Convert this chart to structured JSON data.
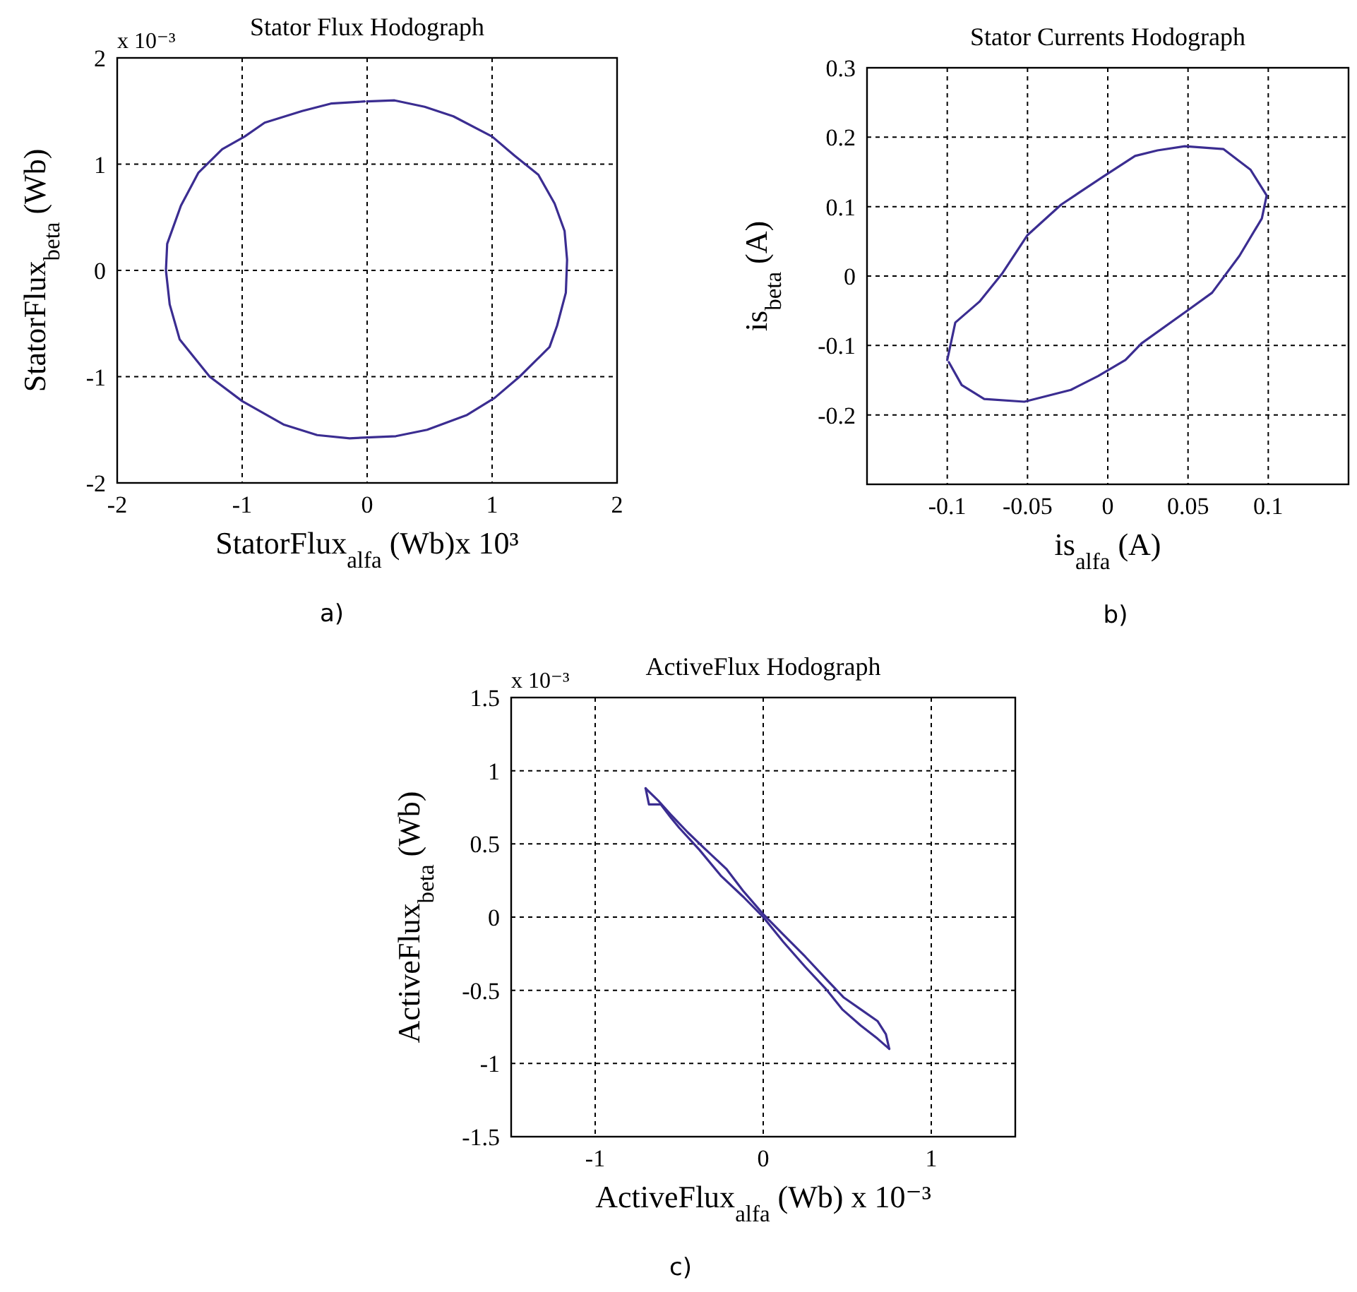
{
  "chart_data": [
    {
      "type": "line",
      "title": "Stator Flux Hodograph",
      "xlabel": "StatorFlux$_{alfa}$ (Wb)x 10³",
      "ylabel": "StatorFlux$_{beta}$ (Wb)",
      "annotations": [
        "x 10⁻³",
        "a)"
      ],
      "xlim": [
        -2,
        2
      ],
      "ylim": [
        -2,
        2
      ],
      "xticks": [
        -2,
        -1,
        0,
        1,
        2
      ],
      "yticks": [
        -2,
        -1,
        0,
        1,
        2
      ],
      "grid": true,
      "series": [
        {
          "color": "#3b2d91",
          "x": [
            0,
            0.22,
            0.46,
            0.69,
            1.0,
            1.18,
            1.37,
            1.5,
            1.58,
            1.6,
            1.59,
            1.52,
            1.46,
            1.22,
            1.02,
            0.8,
            0.48,
            0.23,
            -0.14,
            -0.4,
            -0.67,
            -1.0,
            -1.26,
            -1.5,
            -1.58,
            -1.61,
            -1.6,
            -1.49,
            -1.35,
            -1.16,
            -0.98,
            -0.82,
            -0.52,
            -0.29,
            -0.02
          ],
          "values": [
            1.59,
            1.6,
            1.54,
            1.45,
            1.26,
            1.08,
            0.9,
            0.63,
            0.37,
            0.1,
            -0.21,
            -0.52,
            -0.72,
            -1.0,
            -1.2,
            -1.36,
            -1.5,
            -1.56,
            -1.58,
            -1.55,
            -1.45,
            -1.23,
            -1.0,
            -0.65,
            -0.32,
            0.0,
            0.25,
            0.61,
            0.92,
            1.14,
            1.26,
            1.39,
            1.5,
            1.57,
            1.59
          ]
        }
      ]
    },
    {
      "type": "line",
      "title": "Stator Currents Hodograph",
      "xlabel": "is$_{alfa}$ (A)",
      "ylabel": "is$_{beta}$ (A)",
      "annotations": [
        "b)"
      ],
      "xlim": [
        -0.15,
        0.15
      ],
      "ylim": [
        -0.3,
        0.3
      ],
      "xticks": [
        -0.1,
        -0.05,
        0,
        0.05,
        0.1
      ],
      "yticks": [
        -0.2,
        -0.1,
        0,
        0.1,
        0.2,
        0.3
      ],
      "grid": true,
      "series": [
        {
          "color": "#3b2d91",
          "x": [
            -0.1,
            -0.095,
            -0.08,
            -0.066,
            -0.05,
            -0.029,
            -0.003,
            0.017,
            0.031,
            0.048,
            0.072,
            0.089,
            0.099,
            0.096,
            0.082,
            0.065,
            0.05,
            0.021,
            0.011,
            -0.006,
            -0.023,
            -0.052,
            -0.077,
            -0.091,
            -0.099
          ],
          "values": [
            -0.121,
            -0.067,
            -0.037,
            0.003,
            0.059,
            0.103,
            0.143,
            0.173,
            0.181,
            0.187,
            0.183,
            0.153,
            0.116,
            0.083,
            0.029,
            -0.024,
            -0.049,
            -0.097,
            -0.121,
            -0.144,
            -0.164,
            -0.181,
            -0.177,
            -0.157,
            -0.124
          ]
        }
      ]
    },
    {
      "type": "line",
      "title": "ActiveFlux Hodograph",
      "xlabel": "ActiveFlux$_{alfa}$ (Wb) x 10⁻³",
      "ylabel": "ActiveFlux$_{beta}$ (Wb)",
      "annotations": [
        "x 10⁻³",
        "c)"
      ],
      "xlim": [
        -1.5,
        1.5
      ],
      "ylim": [
        -1.5,
        1.5
      ],
      "xticks": [
        -1,
        0,
        1
      ],
      "yticks": [
        -1.5,
        -1,
        -0.5,
        0,
        0.5,
        1,
        1.5
      ],
      "grid": true,
      "series": [
        {
          "color": "#3b2d91",
          "x": [
            -0.7,
            -0.62,
            -0.55,
            -0.45,
            -0.35,
            -0.22,
            -0.12,
            0.0,
            0.12,
            0.25,
            0.38,
            0.48,
            0.58,
            0.68,
            0.73,
            0.75
          ],
          "values": [
            0.88,
            0.79,
            0.7,
            0.58,
            0.47,
            0.33,
            0.18,
            0.02,
            -0.12,
            -0.27,
            -0.43,
            -0.55,
            -0.63,
            -0.71,
            -0.8,
            -0.9
          ]
        },
        {
          "color": "#3b2d91",
          "x": [
            -0.7,
            -0.68,
            -0.61,
            -0.55,
            -0.5,
            -0.38,
            -0.25,
            -0.12,
            0.0,
            0.12,
            0.25,
            0.38,
            0.47,
            0.58,
            0.68,
            0.75
          ],
          "values": [
            0.88,
            0.77,
            0.77,
            0.68,
            0.61,
            0.46,
            0.28,
            0.14,
            0.0,
            -0.17,
            -0.34,
            -0.5,
            -0.63,
            -0.74,
            -0.83,
            -0.9
          ]
        }
      ]
    }
  ]
}
